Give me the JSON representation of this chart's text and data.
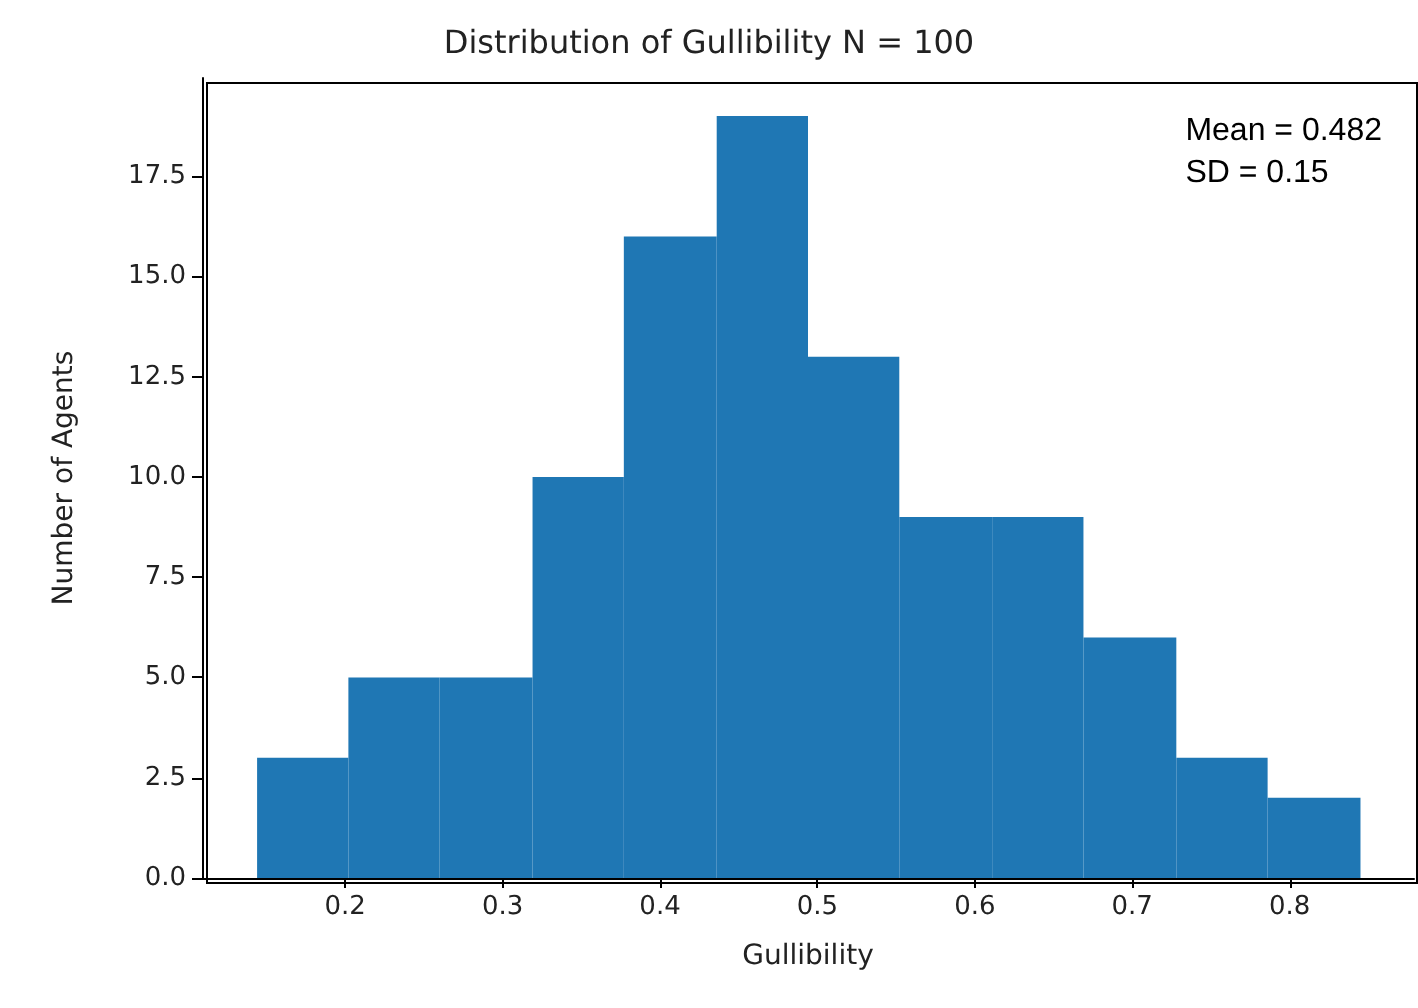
{
  "chart_data": {
    "type": "histogram",
    "title": "Distribution of Gullibility N = 100",
    "xlabel": "Gullibility",
    "ylabel": "Number of Agents",
    "bins": [
      0.144,
      0.202,
      0.26,
      0.319,
      0.377,
      0.436,
      0.494,
      0.552,
      0.611,
      0.669,
      0.728,
      0.786,
      0.845
    ],
    "values": [
      3,
      5,
      5,
      10,
      16,
      19,
      13,
      9,
      9,
      6,
      3,
      2
    ],
    "color": "#1f77b4",
    "xlim": [
      0.109,
      0.879
    ],
    "xticks": [
      0.2,
      0.3,
      0.4,
      0.5,
      0.6,
      0.7,
      0.8
    ],
    "ylim": [
      0,
      19.95
    ],
    "yticks": [
      {
        "value": 0,
        "label": "0.0"
      },
      {
        "value": 2.5,
        "label": "2.5"
      },
      {
        "value": 5,
        "label": "5.0"
      },
      {
        "value": 7.5,
        "label": "7.5"
      },
      {
        "value": 10,
        "label": "10.0"
      },
      {
        "value": 12.5,
        "label": "12.5"
      },
      {
        "value": 15,
        "label": "15.0"
      },
      {
        "value": 17.5,
        "label": "17.5"
      }
    ],
    "annotations": [
      "Mean = 0.482\nSD = 0.15"
    ],
    "grid": false,
    "legend": false
  }
}
